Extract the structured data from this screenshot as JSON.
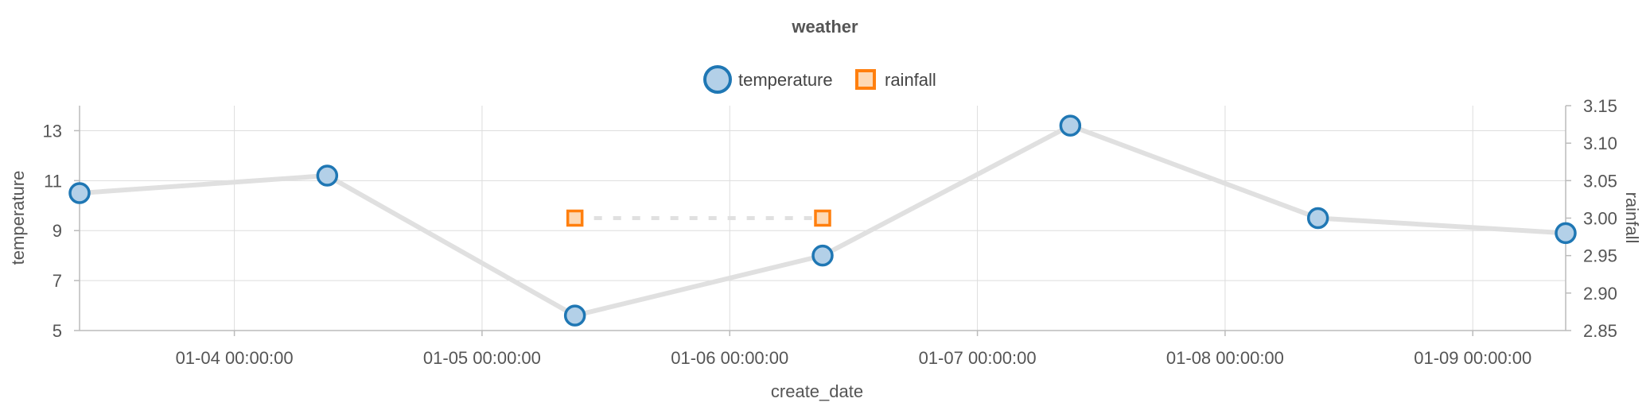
{
  "chart_data": {
    "type": "line",
    "title": "weather",
    "xlabel": "create_date",
    "ylabel_left": "temperature",
    "ylabel_right": "rainfall",
    "x_ticks": [
      "01-04 00:00:00",
      "01-05 00:00:00",
      "01-06 00:00:00",
      "01-07 00:00:00",
      "01-08 00:00:00",
      "01-09 00:00:00"
    ],
    "y_left_ticks": [
      "5",
      "7",
      "9",
      "11",
      "13"
    ],
    "y_right_ticks": [
      "2.85",
      "2.90",
      "2.95",
      "3.00",
      "3.05",
      "3.10",
      "3.15"
    ],
    "xlim": [
      "01-03 09:00:00",
      "01-09 09:00:00"
    ],
    "ylim_left": [
      5,
      14
    ],
    "ylim_right": [
      2.85,
      3.15
    ],
    "grid": true,
    "legend_position": "top-center",
    "series": [
      {
        "name": "temperature",
        "axis": "left",
        "color": "#1f77b4",
        "fill": "#b3d0e8",
        "marker": "circle",
        "points": [
          {
            "x": "01-03 09:00:00",
            "y": 10.5
          },
          {
            "x": "01-04 09:00:00",
            "y": 11.2
          },
          {
            "x": "01-05 09:00:00",
            "y": 5.6
          },
          {
            "x": "01-06 09:00:00",
            "y": 8.0
          },
          {
            "x": "01-07 09:00:00",
            "y": 13.2
          },
          {
            "x": "01-08 09:00:00",
            "y": 9.5
          },
          {
            "x": "01-09 09:00:00",
            "y": 8.9
          }
        ]
      },
      {
        "name": "rainfall",
        "axis": "right",
        "color": "#ff7f0e",
        "fill": "#fdd9b5",
        "marker": "square",
        "points": [
          {
            "x": "01-05 09:00:00",
            "y": 3.0
          },
          {
            "x": "01-06 09:00:00",
            "y": 3.0
          }
        ]
      }
    ]
  }
}
